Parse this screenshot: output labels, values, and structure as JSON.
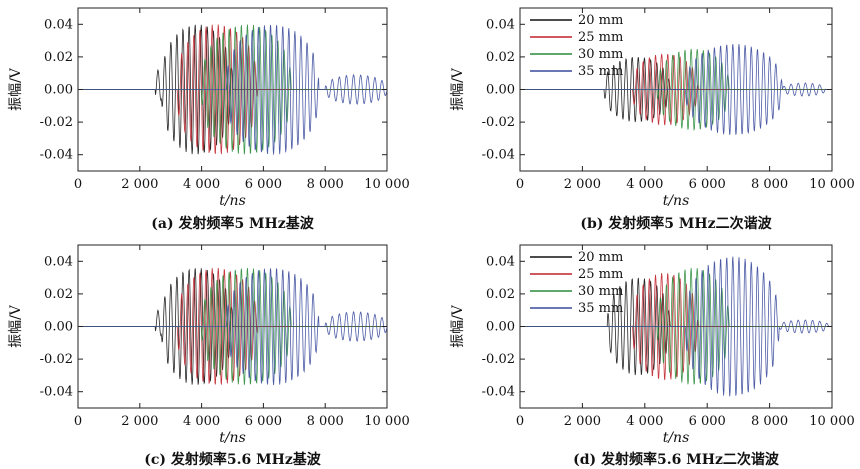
{
  "chart_data": [
    {
      "type": "line",
      "caption": "(a) 发射频率5 MHz基波",
      "xlabel": "t/ns",
      "ylabel": "振幅/V",
      "xlim": [
        0,
        10000
      ],
      "ylim": [
        -0.05,
        0.05
      ],
      "xticks": [
        0,
        2000,
        4000,
        6000,
        8000,
        10000
      ],
      "xtick_labels": [
        "0",
        "2 000",
        "4 000",
        "6 000",
        "8 000",
        "10 000"
      ],
      "yticks": [
        0.04,
        0.02,
        0.0,
        -0.02,
        -0.04
      ],
      "ytick_labels": [
        "0.04",
        "0.02",
        "0.00",
        "-0.02",
        "-0.04"
      ],
      "legend": null,
      "series": [
        {
          "name": "20 mm",
          "color": "#111111",
          "burst": [
            2700,
            5000
          ],
          "amp": 0.04,
          "ring": [
            2500,
            2700
          ],
          "ring_amp": 0.012
        },
        {
          "name": "25 mm",
          "color": "#c0202a",
          "burst": [
            3200,
            5800
          ],
          "amp": 0.04,
          "ring": null,
          "ring_amp": 0
        },
        {
          "name": "30 mm",
          "color": "#2a8c3a",
          "burst": [
            4000,
            6900
          ],
          "amp": 0.04,
          "ring": null,
          "ring_amp": 0
        },
        {
          "name": "35 mm",
          "color": "#3a4a9c",
          "burst": [
            4800,
            7800
          ],
          "amp": 0.04,
          "ring": [
            8000,
            10000
          ],
          "ring_amp": 0.009
        }
      ]
    },
    {
      "type": "line",
      "caption": "(b) 发射频率5 MHz二次谐波",
      "xlabel": "t/ns",
      "ylabel": "振幅/V",
      "xlim": [
        0,
        10000
      ],
      "ylim": [
        -0.05,
        0.05
      ],
      "xticks": [
        0,
        2000,
        4000,
        6000,
        8000,
        10000
      ],
      "xtick_labels": [
        "0",
        "2 000",
        "4 000",
        "6 000",
        "8 000",
        "10 000"
      ],
      "yticks": [
        0.04,
        0.02,
        0.0,
        -0.02,
        -0.04
      ],
      "ytick_labels": [
        "0.04",
        "0.02",
        "0.00",
        "-0.02",
        "-0.04"
      ],
      "legend": "top-left",
      "legend_labels": [
        "20 mm",
        "25 mm",
        "30 mm",
        "35 mm"
      ],
      "series": [
        {
          "name": "20 mm",
          "color": "#111111",
          "burst": [
            2700,
            4800
          ],
          "amp": 0.02,
          "ring": null,
          "ring_amp": 0
        },
        {
          "name": "25 mm",
          "color": "#c0202a",
          "burst": [
            3600,
            5700
          ],
          "amp": 0.022,
          "ring": null,
          "ring_amp": 0
        },
        {
          "name": "30 mm",
          "color": "#2a8c3a",
          "burst": [
            4400,
            6700
          ],
          "amp": 0.025,
          "ring": null,
          "ring_amp": 0
        },
        {
          "name": "35 mm",
          "color": "#3a4a9c",
          "burst": [
            5300,
            8400
          ],
          "amp": 0.028,
          "ring": [
            8400,
            9800
          ],
          "ring_amp": 0.004
        }
      ]
    },
    {
      "type": "line",
      "caption": "(c) 发射频率5.6 MHz基波",
      "xlabel": "t/ns",
      "ylabel": "振幅/V",
      "xlim": [
        0,
        10000
      ],
      "ylim": [
        -0.05,
        0.05
      ],
      "xticks": [
        0,
        2000,
        4000,
        6000,
        8000,
        10000
      ],
      "xtick_labels": [
        "0",
        "2 000",
        "4 000",
        "6 000",
        "8 000",
        "10 000"
      ],
      "yticks": [
        0.04,
        0.02,
        0.0,
        -0.02,
        -0.04
      ],
      "ytick_labels": [
        "0.04",
        "0.02",
        "0.00",
        "-0.02",
        "-0.04"
      ],
      "legend": null,
      "series": [
        {
          "name": "20 mm",
          "color": "#111111",
          "burst": [
            2700,
            5000
          ],
          "amp": 0.036,
          "ring": [
            2500,
            2700
          ],
          "ring_amp": 0.01
        },
        {
          "name": "25 mm",
          "color": "#c0202a",
          "burst": [
            3200,
            5800
          ],
          "amp": 0.036,
          "ring": null,
          "ring_amp": 0
        },
        {
          "name": "30 mm",
          "color": "#2a8c3a",
          "burst": [
            4000,
            6900
          ],
          "amp": 0.036,
          "ring": null,
          "ring_amp": 0
        },
        {
          "name": "35 mm",
          "color": "#3a4a9c",
          "burst": [
            4800,
            7800
          ],
          "amp": 0.036,
          "ring": [
            8000,
            10000
          ],
          "ring_amp": 0.009
        }
      ]
    },
    {
      "type": "line",
      "caption": "(d) 发射频率5.6 MHz二次谐波",
      "xlabel": "t/ns",
      "ylabel": "振幅/V",
      "xlim": [
        0,
        10000
      ],
      "ylim": [
        -0.05,
        0.05
      ],
      "xticks": [
        0,
        2000,
        4000,
        6000,
        8000,
        10000
      ],
      "xtick_labels": [
        "0",
        "2 000",
        "4 000",
        "6 000",
        "8 000",
        "10 000"
      ],
      "yticks": [
        0.04,
        0.02,
        0.0,
        -0.02,
        -0.04
      ],
      "ytick_labels": [
        "0.04",
        "0.02",
        "0.00",
        "-0.02",
        "-0.04"
      ],
      "legend": "top-left",
      "legend_labels": [
        "20 mm",
        "25 mm",
        "30 mm",
        "35 mm"
      ],
      "series": [
        {
          "name": "20 mm",
          "color": "#111111",
          "burst": [
            2800,
            4800
          ],
          "amp": 0.03,
          "ring": null,
          "ring_amp": 0
        },
        {
          "name": "25 mm",
          "color": "#c0202a",
          "burst": [
            3600,
            5700
          ],
          "amp": 0.033,
          "ring": null,
          "ring_amp": 0
        },
        {
          "name": "30 mm",
          "color": "#2a8c3a",
          "burst": [
            4400,
            6700
          ],
          "amp": 0.036,
          "ring": null,
          "ring_amp": 0
        },
        {
          "name": "35 mm",
          "color": "#3a4a9c",
          "burst": [
            5300,
            8300
          ],
          "amp": 0.043,
          "ring": [
            8300,
            9900
          ],
          "ring_amp": 0.004
        }
      ]
    }
  ]
}
